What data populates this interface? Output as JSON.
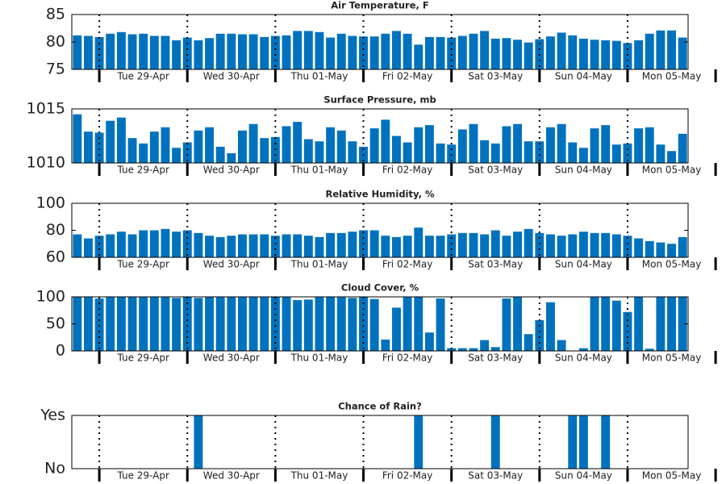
{
  "chart_data": [
    {
      "type": "bar",
      "title": "Air Temperature, F",
      "color": "#0072bd",
      "categories": [
        null,
        null,
        null,
        null,
        null,
        null,
        null,
        null,
        null,
        null,
        null,
        null,
        null,
        null,
        null,
        null,
        null,
        null,
        null,
        null,
        null,
        null,
        null,
        null,
        null,
        null,
        null,
        null,
        null,
        null,
        null,
        null,
        null,
        null,
        null,
        null,
        null,
        null,
        null,
        null,
        null,
        null,
        null,
        null,
        null,
        null,
        null,
        null,
        null,
        null,
        null,
        null,
        null,
        null,
        null,
        null
      ],
      "values": [
        81.2,
        81.1,
        80.9,
        81.5,
        81.8,
        81.4,
        81.5,
        81.1,
        81.1,
        80.3,
        80.8,
        80.3,
        80.7,
        81.5,
        81.5,
        81.4,
        81.4,
        80.9,
        81.1,
        81.2,
        82,
        82,
        81.8,
        80.8,
        81.5,
        81.1,
        81,
        81,
        81.5,
        82,
        81.5,
        79.5,
        80.9,
        80.9,
        80.8,
        81.1,
        81.5,
        82,
        80.6,
        80.7,
        80.4,
        79.9,
        80.5,
        81,
        81.7,
        81.2,
        80.6,
        80.4,
        80.3,
        80.2,
        79.8,
        80.3,
        81.5,
        82.1,
        82.1,
        80.8
      ],
      "ylim": [
        75,
        85
      ],
      "yticks": [
        75,
        80,
        85
      ],
      "xtick_labels": [
        "Tue 29-Apr",
        "Wed 30-Apr",
        "Thu 01-May",
        "Fri 02-May",
        "Sat 03-May",
        "Sun 04-May",
        "Mon 05-May"
      ]
    },
    {
      "type": "bar",
      "title": "Surface Pressure, mb",
      "color": "#0072bd",
      "categories": [
        null,
        null,
        null,
        null,
        null,
        null,
        null,
        null,
        null,
        null,
        null,
        null,
        null,
        null,
        null,
        null,
        null,
        null,
        null,
        null,
        null,
        null,
        null,
        null,
        null,
        null,
        null,
        null,
        null,
        null,
        null,
        null,
        null,
        null,
        null,
        null,
        null,
        null,
        null,
        null,
        null,
        null,
        null,
        null,
        null,
        null,
        null,
        null,
        null,
        null,
        null,
        null,
        null,
        null,
        null,
        null
      ],
      "values": [
        1014.5,
        1012.9,
        1012.8,
        1013.9,
        1014.2,
        1012.3,
        1011.8,
        1012.9,
        1013.3,
        1011.4,
        1011.9,
        1013,
        1013.3,
        1011.5,
        1010.9,
        1013,
        1013.6,
        1012.3,
        1012.4,
        1013.4,
        1013.8,
        1012.2,
        1012,
        1013.3,
        1013,
        1012,
        1011.5,
        1013.2,
        1014,
        1012.5,
        1011.9,
        1013.3,
        1013.5,
        1011.8,
        1011.7,
        1013.1,
        1013.6,
        1012.1,
        1011.8,
        1013.4,
        1013.6,
        1012,
        1012,
        1013.3,
        1013.6,
        1011.9,
        1011.4,
        1013.2,
        1013.5,
        1011.7,
        1011.8,
        1013.2,
        1013.3,
        1011.7,
        1011.1,
        1012.7
      ],
      "ylim": [
        1010,
        1015
      ],
      "yticks": [
        1010,
        1015
      ],
      "xtick_labels": [
        "Tue 29-Apr",
        "Wed 30-Apr",
        "Thu 01-May",
        "Fri 02-May",
        "Sat 03-May",
        "Sun 04-May",
        "Mon 05-May"
      ]
    },
    {
      "type": "bar",
      "title": "Relative Humidity, %",
      "color": "#0072bd",
      "categories": [
        null,
        null,
        null,
        null,
        null,
        null,
        null,
        null,
        null,
        null,
        null,
        null,
        null,
        null,
        null,
        null,
        null,
        null,
        null,
        null,
        null,
        null,
        null,
        null,
        null,
        null,
        null,
        null,
        null,
        null,
        null,
        null,
        null,
        null,
        null,
        null,
        null,
        null,
        null,
        null,
        null,
        null,
        null,
        null,
        null,
        null,
        null,
        null,
        null,
        null,
        null,
        null,
        null,
        null,
        null,
        null
      ],
      "values": [
        77,
        74,
        76,
        77,
        79,
        77,
        80,
        80,
        81,
        79,
        80,
        78,
        76,
        75,
        76,
        77,
        77,
        77,
        76,
        77,
        77,
        76,
        75,
        78,
        78,
        79,
        80,
        80,
        76,
        75,
        76,
        82,
        76,
        76,
        77,
        78,
        78,
        77,
        80,
        76,
        79,
        81,
        78,
        77,
        76,
        77,
        79,
        78,
        78,
        77,
        76,
        74,
        72,
        71,
        70,
        75
      ],
      "ylim": [
        60,
        100
      ],
      "yticks": [
        60,
        80,
        100
      ],
      "xtick_labels": [
        "Tue 29-Apr",
        "Wed 30-Apr",
        "Thu 01-May",
        "Fri 02-May",
        "Sat 03-May",
        "Sun 04-May",
        "Mon 05-May"
      ]
    },
    {
      "type": "bar",
      "title": "Cloud Cover, %",
      "color": "#0072bd",
      "categories": [
        null,
        null,
        null,
        null,
        null,
        null,
        null,
        null,
        null,
        null,
        null,
        null,
        null,
        null,
        null,
        null,
        null,
        null,
        null,
        null,
        null,
        null,
        null,
        null,
        null,
        null,
        null,
        null,
        null,
        null,
        null,
        null,
        null,
        null,
        null,
        null,
        null,
        null,
        null,
        null,
        null,
        null,
        null,
        null,
        null,
        null,
        null,
        null,
        null,
        null,
        null,
        null,
        null,
        null,
        null,
        null
      ],
      "values": [
        100,
        100,
        97,
        100,
        100,
        100,
        100,
        100,
        100,
        98,
        100,
        98,
        100,
        100,
        100,
        100,
        100,
        100,
        100,
        100,
        94,
        95,
        100,
        100,
        100,
        98,
        100,
        96,
        21,
        80,
        100,
        100,
        34,
        97,
        5,
        5,
        5,
        20,
        7,
        97,
        100,
        31,
        57,
        90,
        20,
        0,
        5,
        100,
        100,
        93,
        72,
        100,
        4,
        100,
        100,
        100
      ],
      "ylim": [
        0,
        100
      ],
      "yticks": [
        0,
        50,
        100
      ],
      "xtick_labels": [
        "Tue 29-Apr",
        "Wed 30-Apr",
        "Thu 01-May",
        "Fri 02-May",
        "Sat 03-May",
        "Sun 04-May",
        "Mon 05-May"
      ]
    },
    {
      "type": "bar",
      "title": "Chance of Rain?",
      "color": "#0072bd",
      "categories": [
        null,
        null,
        null,
        null,
        null,
        null,
        null,
        null,
        null,
        null,
        null,
        null,
        null,
        null,
        null,
        null,
        null,
        null,
        null,
        null,
        null,
        null,
        null,
        null,
        null,
        null,
        null,
        null,
        null,
        null,
        null,
        null,
        null,
        null,
        null,
        null,
        null,
        null,
        null,
        null,
        null,
        null,
        null,
        null,
        null,
        null,
        null,
        null,
        null,
        null,
        null,
        null,
        null,
        null,
        null,
        null
      ],
      "values": [
        0,
        0,
        0,
        0,
        0,
        0,
        0,
        0,
        0,
        0,
        0,
        1,
        0,
        0,
        0,
        0,
        0,
        0,
        0,
        0,
        0,
        0,
        0,
        0,
        0,
        0,
        0,
        0,
        0,
        0,
        0,
        1,
        0,
        0,
        0,
        0,
        0,
        0,
        1,
        0,
        0,
        0,
        0,
        0,
        0,
        1,
        1,
        0,
        1,
        0,
        0,
        0,
        0,
        0,
        0,
        0
      ],
      "ylim": [
        0,
        1
      ],
      "yticks": [
        {
          "value": 0,
          "label": "No"
        },
        {
          "value": 1,
          "label": "Yes"
        }
      ],
      "xtick_labels": [
        "Tue 29-Apr",
        "Wed 30-Apr",
        "Thu 01-May",
        "Fri 02-May",
        "Sat 03-May",
        "Sun 04-May",
        "Mon 05-May"
      ]
    }
  ]
}
